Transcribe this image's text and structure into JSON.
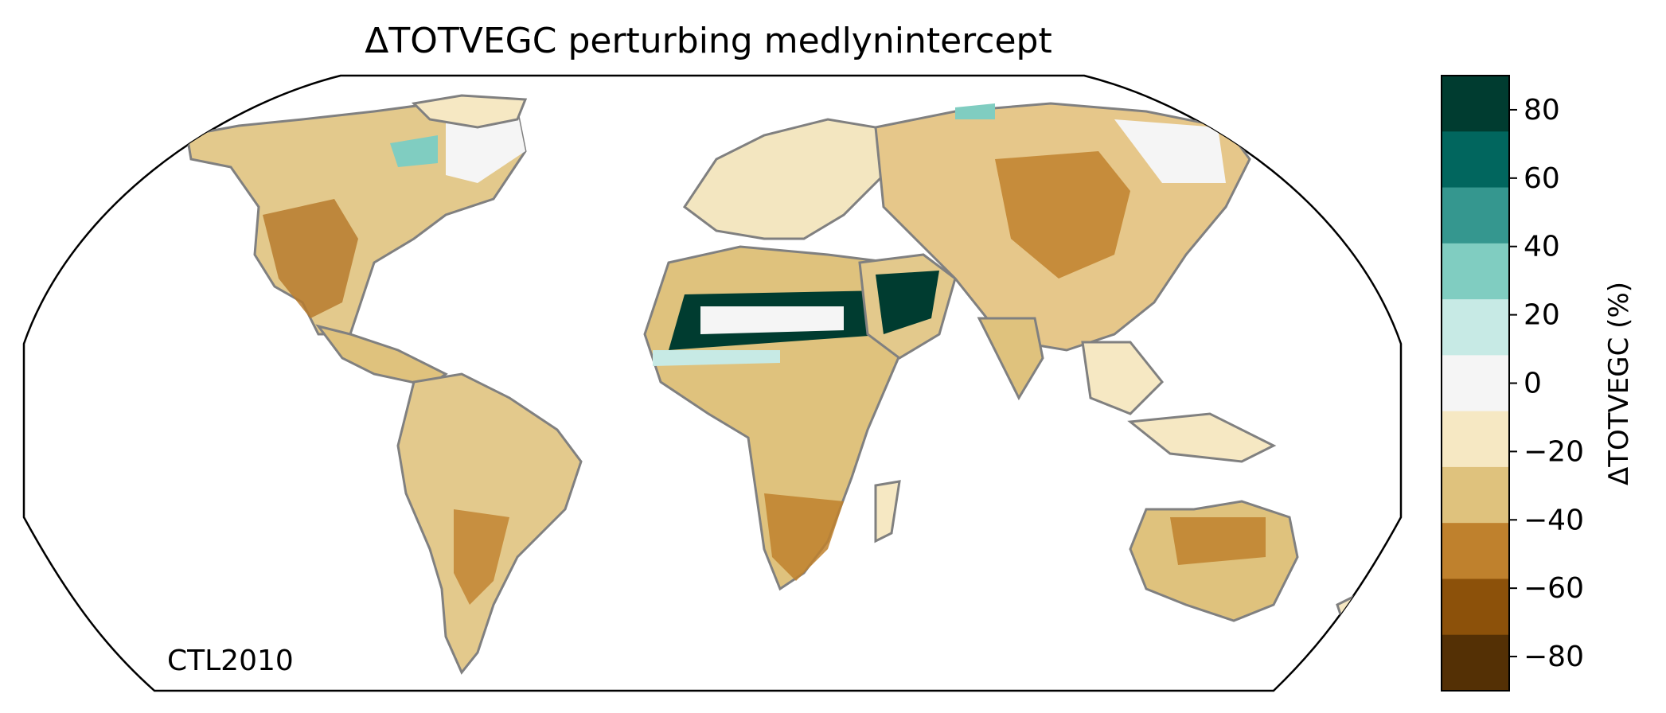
{
  "title": "ΔTOTVEGC perturbing medlynintercept",
  "annotation": "CTL2010",
  "colorbar": {
    "label": "ΔTOTVEGC (%)",
    "range": [
      -90,
      90
    ],
    "tick_labels": [
      "80",
      "60",
      "40",
      "20",
      "0",
      "−20",
      "−40",
      "−60",
      "−80"
    ],
    "tick_values": [
      80,
      60,
      40,
      20,
      0,
      -20,
      -40,
      -60,
      -80
    ],
    "levels": [
      {
        "min": 70,
        "max": 90,
        "color": "#003c30"
      },
      {
        "min": 50,
        "max": 70,
        "color": "#01665e"
      },
      {
        "min": 30,
        "max": 50,
        "color": "#35978f"
      },
      {
        "min": 10,
        "max": 30,
        "color": "#80cdc1"
      },
      {
        "min": -10,
        "max": 10,
        "color": "#c7eae5"
      },
      {
        "min": -10,
        "max": 10,
        "color": "#f5f5f5"
      },
      {
        "min": -30,
        "max": -10,
        "color": "#f6e8c3"
      },
      {
        "min": -50,
        "max": -30,
        "color": "#dfc27d"
      },
      {
        "min": -70,
        "max": -50,
        "color": "#bf812d"
      },
      {
        "min": -90,
        "max": -70,
        "color": "#8c510a"
      },
      {
        "min": -90,
        "max": -90,
        "color": "#543005"
      }
    ]
  },
  "map": {
    "projection": "Robinson",
    "colors": {
      "coast": "#808080",
      "border": "#c4c4c4",
      "frame": "#000000"
    }
  }
}
